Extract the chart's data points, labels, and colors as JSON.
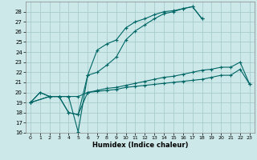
{
  "background_color": "#cce8e8",
  "grid_color": "#aacccc",
  "line_color": "#006666",
  "xlabel": "Humidex (Indice chaleur)",
  "xlim": [
    -0.5,
    23.5
  ],
  "ylim": [
    16,
    29
  ],
  "yticks": [
    16,
    17,
    18,
    19,
    20,
    21,
    22,
    23,
    24,
    25,
    26,
    27,
    28
  ],
  "xticks": [
    0,
    1,
    2,
    3,
    4,
    5,
    6,
    7,
    8,
    9,
    10,
    11,
    12,
    13,
    14,
    15,
    16,
    17,
    18,
    19,
    20,
    21,
    22,
    23
  ],
  "lines": [
    {
      "x": [
        0,
        2,
        3,
        4,
        5,
        6,
        7,
        8,
        9,
        10,
        11,
        12,
        13,
        14,
        15,
        16,
        17,
        18
      ],
      "y": [
        19,
        19.6,
        19.6,
        19.6,
        16.1,
        21.7,
        24.2,
        24.8,
        25.2,
        26.4,
        27.0,
        27.3,
        27.7,
        28.0,
        28.1,
        28.3,
        28.5,
        27.3
      ]
    },
    {
      "x": [
        0,
        2,
        3,
        4,
        5,
        6,
        7,
        8,
        9,
        10,
        11,
        12,
        13,
        14,
        15,
        16,
        17,
        18,
        19,
        20,
        21,
        22
      ],
      "y": [
        19,
        19.6,
        19.6,
        18.0,
        17.8,
        21.7,
        22.0,
        22.7,
        23.5,
        25.2,
        26.1,
        26.7,
        27.3,
        27.8,
        28.0,
        28.3,
        28.5,
        27.3,
        null,
        null,
        null,
        null
      ]
    },
    {
      "x": [
        0,
        1,
        2,
        3,
        4,
        5,
        6,
        7,
        8,
        9,
        10,
        11,
        12,
        13,
        14,
        15,
        16,
        17,
        18,
        19,
        20,
        21,
        22,
        23
      ],
      "y": [
        19,
        20,
        19.6,
        19.6,
        18.0,
        17.8,
        20.0,
        20.2,
        20.4,
        20.5,
        20.7,
        20.9,
        21.1,
        21.3,
        21.5,
        21.6,
        21.8,
        22.0,
        22.2,
        22.3,
        22.5,
        22.5,
        23.0,
        20.8
      ]
    },
    {
      "x": [
        0,
        1,
        2,
        3,
        4,
        5,
        6,
        7,
        8,
        9,
        10,
        11,
        12,
        13,
        14,
        15,
        16,
        17,
        18,
        19,
        20,
        21,
        22,
        23
      ],
      "y": [
        19,
        20,
        19.6,
        19.6,
        19.6,
        19.6,
        20.0,
        20.1,
        20.2,
        20.3,
        20.5,
        20.6,
        20.7,
        20.8,
        20.9,
        21.0,
        21.1,
        21.2,
        21.3,
        21.5,
        21.7,
        21.7,
        22.3,
        20.8
      ]
    }
  ]
}
